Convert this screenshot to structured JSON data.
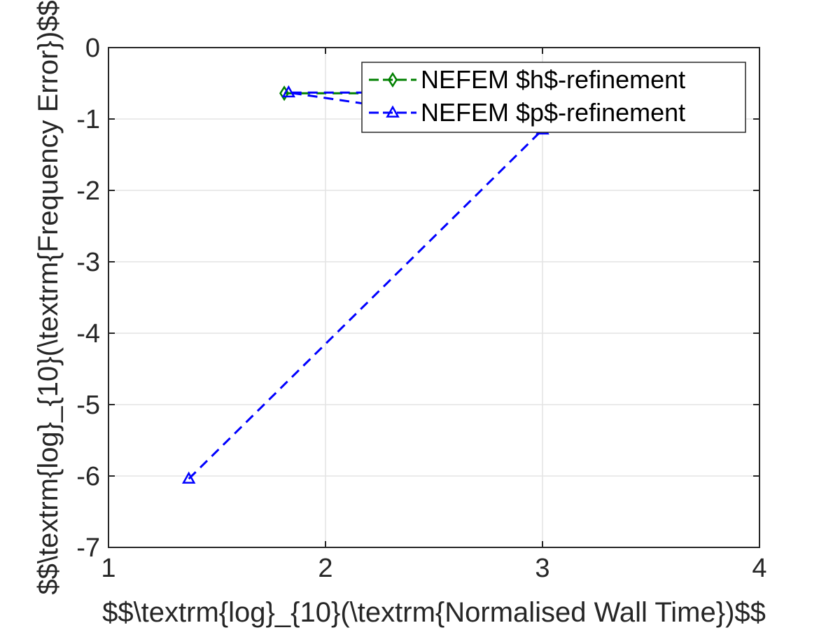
{
  "chart_data": {
    "type": "line",
    "title": "",
    "xlabel": "$$\\textrm{log}_{10}(\\textrm{Normalised Wall Time})$$",
    "ylabel": "$$\\textrm{log}_{10}(\\textrm{Frequency Error})$$",
    "xlim": [
      1,
      4
    ],
    "ylim": [
      -7,
      0
    ],
    "xticks": [
      1,
      2,
      3,
      4
    ],
    "yticks": [
      0,
      -1,
      -2,
      -3,
      -4,
      -5,
      -6,
      -7
    ],
    "xtick_labels": [
      "1",
      "2",
      "3",
      "4"
    ],
    "ytick_labels": [
      "0",
      "-1",
      "-2",
      "-3",
      "-4",
      "-5",
      "-6",
      "-7"
    ],
    "grid": true,
    "legend_position": "top-right",
    "series": [
      {
        "name": "NEFEM $h$-refinement",
        "color": "#008000",
        "marker": "diamond",
        "line_style": "dashed",
        "x": [
          1.81,
          2.3
        ],
        "y": [
          -0.64,
          -0.64
        ]
      },
      {
        "name": "NEFEM $p$-refinement",
        "color": "#0000ff",
        "marker": "triangle",
        "line_style": "dashed",
        "x": [
          1.37,
          3.0,
          1.83,
          2.3
        ],
        "y": [
          -6.04,
          -1.15,
          -0.63,
          -0.63
        ]
      }
    ]
  }
}
